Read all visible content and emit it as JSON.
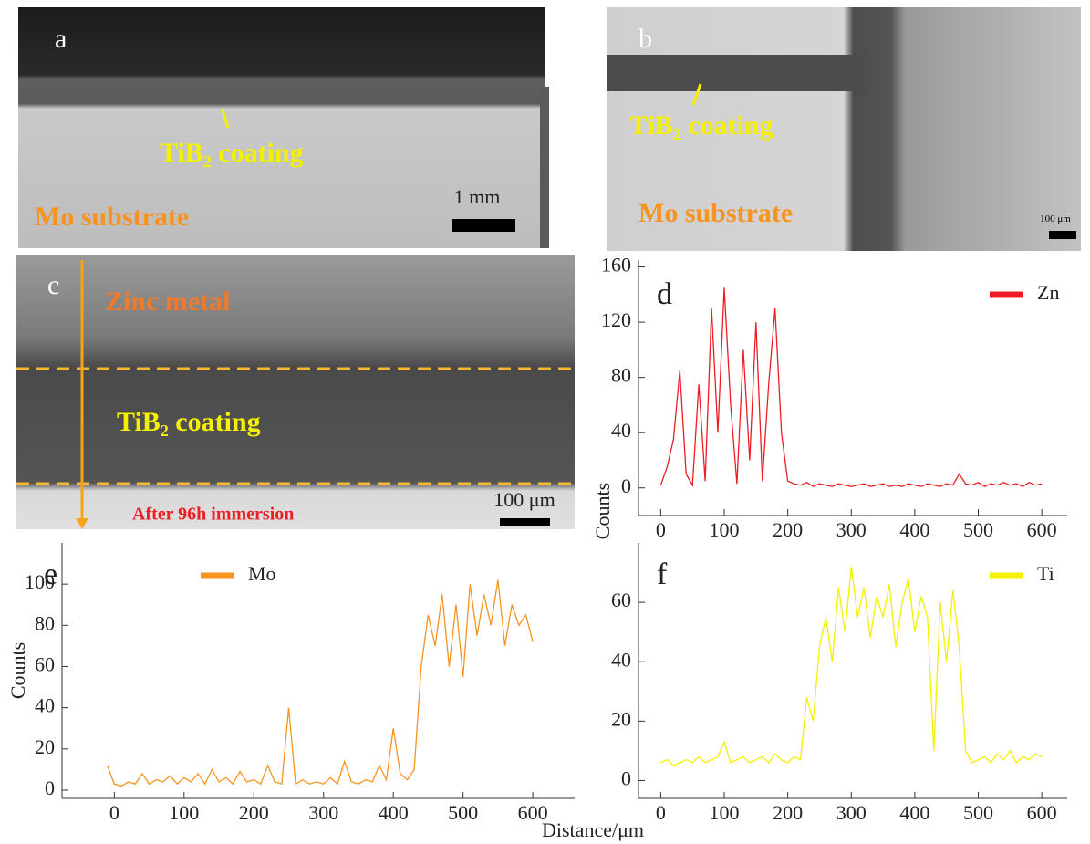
{
  "panels": [
    {
      "label": "a",
      "coating": "TiB₂ coating",
      "substrate": "Mo substrate",
      "scale": "1 mm"
    },
    {
      "label": "b",
      "coating": "TiB₂ coating",
      "substrate": "Mo substrate",
      "scale": "100 μm"
    },
    {
      "label": "c",
      "metal": "Zinc metal",
      "coating": "TiB₂ coating",
      "note": "After 96h immersion",
      "scale": "100 μm"
    }
  ],
  "shared_x_label": "Distance/μm",
  "chart_data": [
    {
      "type": "line",
      "panel_label": "d",
      "y_label": "Counts",
      "xlim": [
        -35,
        640
      ],
      "ylim": [
        -20,
        165
      ],
      "xticks": [
        0,
        100,
        200,
        300,
        400,
        500,
        600
      ],
      "yticks": [
        0,
        40,
        80,
        120,
        160
      ],
      "x": [
        0,
        10,
        20,
        30,
        40,
        50,
        60,
        70,
        80,
        90,
        100,
        110,
        120,
        130,
        140,
        150,
        160,
        170,
        180,
        190,
        200,
        210,
        220,
        230,
        240,
        250,
        260,
        270,
        280,
        290,
        300,
        310,
        320,
        330,
        340,
        350,
        360,
        370,
        380,
        390,
        400,
        410,
        420,
        430,
        440,
        450,
        460,
        470,
        480,
        490,
        500,
        510,
        520,
        530,
        540,
        550,
        560,
        570,
        580,
        590,
        600
      ],
      "series": [
        {
          "name": "Zn",
          "color": "#ee1c24",
          "values": [
            2,
            15,
            35,
            85,
            10,
            2,
            75,
            5,
            130,
            40,
            145,
            60,
            3,
            100,
            20,
            120,
            5,
            75,
            130,
            40,
            5,
            3,
            2,
            4,
            1,
            3,
            2,
            1,
            3,
            2,
            1,
            2,
            3,
            1,
            2,
            3,
            1,
            2,
            1,
            3,
            2,
            1,
            3,
            2,
            1,
            3,
            2,
            10,
            3,
            2,
            4,
            1,
            3,
            2,
            4,
            2,
            3,
            1,
            4,
            2,
            3
          ]
        }
      ]
    },
    {
      "type": "line",
      "panel_label": "e",
      "y_label": "Counts",
      "xlim": [
        -75,
        660
      ],
      "ylim": [
        -4,
        120
      ],
      "xticks": [
        0,
        100,
        200,
        300,
        400,
        500,
        600
      ],
      "yticks": [
        0,
        20,
        40,
        60,
        80,
        100
      ],
      "x": [
        -10,
        0,
        10,
        20,
        30,
        40,
        50,
        60,
        70,
        80,
        90,
        100,
        110,
        120,
        130,
        140,
        150,
        160,
        170,
        180,
        190,
        200,
        210,
        220,
        230,
        240,
        250,
        260,
        270,
        280,
        290,
        300,
        310,
        320,
        330,
        340,
        350,
        360,
        370,
        380,
        390,
        400,
        410,
        420,
        430,
        440,
        450,
        460,
        470,
        480,
        490,
        500,
        510,
        520,
        530,
        540,
        550,
        560,
        570,
        580,
        590,
        600
      ],
      "series": [
        {
          "name": "Mo",
          "color": "#f7931e",
          "values": [
            12,
            3,
            2,
            4,
            3,
            8,
            3,
            5,
            4,
            7,
            3,
            6,
            4,
            8,
            3,
            10,
            4,
            6,
            3,
            9,
            4,
            5,
            3,
            12,
            4,
            3,
            40,
            3,
            5,
            3,
            4,
            3,
            6,
            3,
            14,
            4,
            3,
            5,
            4,
            12,
            5,
            30,
            8,
            5,
            10,
            60,
            85,
            70,
            95,
            60,
            90,
            55,
            100,
            75,
            95,
            80,
            102,
            70,
            90,
            80,
            85,
            72
          ]
        }
      ]
    },
    {
      "type": "line",
      "panel_label": "f",
      "xlim": [
        -35,
        640
      ],
      "ylim": [
        -6,
        80
      ],
      "xticks": [
        0,
        100,
        200,
        300,
        400,
        500,
        600
      ],
      "yticks": [
        0,
        20,
        40,
        60
      ],
      "x": [
        0,
        10,
        20,
        30,
        40,
        50,
        60,
        70,
        80,
        90,
        100,
        110,
        120,
        130,
        140,
        150,
        160,
        170,
        180,
        190,
        200,
        210,
        220,
        230,
        240,
        250,
        260,
        270,
        280,
        290,
        300,
        310,
        320,
        330,
        340,
        350,
        360,
        370,
        380,
        390,
        400,
        410,
        420,
        430,
        440,
        450,
        460,
        470,
        480,
        490,
        500,
        510,
        520,
        530,
        540,
        550,
        560,
        570,
        580,
        590,
        600
      ],
      "series": [
        {
          "name": "Ti",
          "color": "#f5f000",
          "values": [
            6,
            7,
            5,
            6,
            7,
            6,
            8,
            6,
            7,
            8,
            13,
            6,
            7,
            8,
            6,
            7,
            8,
            6,
            9,
            7,
            6,
            8,
            7,
            28,
            20,
            45,
            55,
            40,
            65,
            50,
            72,
            55,
            65,
            48,
            62,
            55,
            66,
            45,
            60,
            68,
            50,
            62,
            55,
            10,
            60,
            40,
            64,
            45,
            10,
            6,
            7,
            8,
            6,
            9,
            7,
            10,
            6,
            8,
            7,
            9,
            8
          ]
        }
      ]
    }
  ]
}
